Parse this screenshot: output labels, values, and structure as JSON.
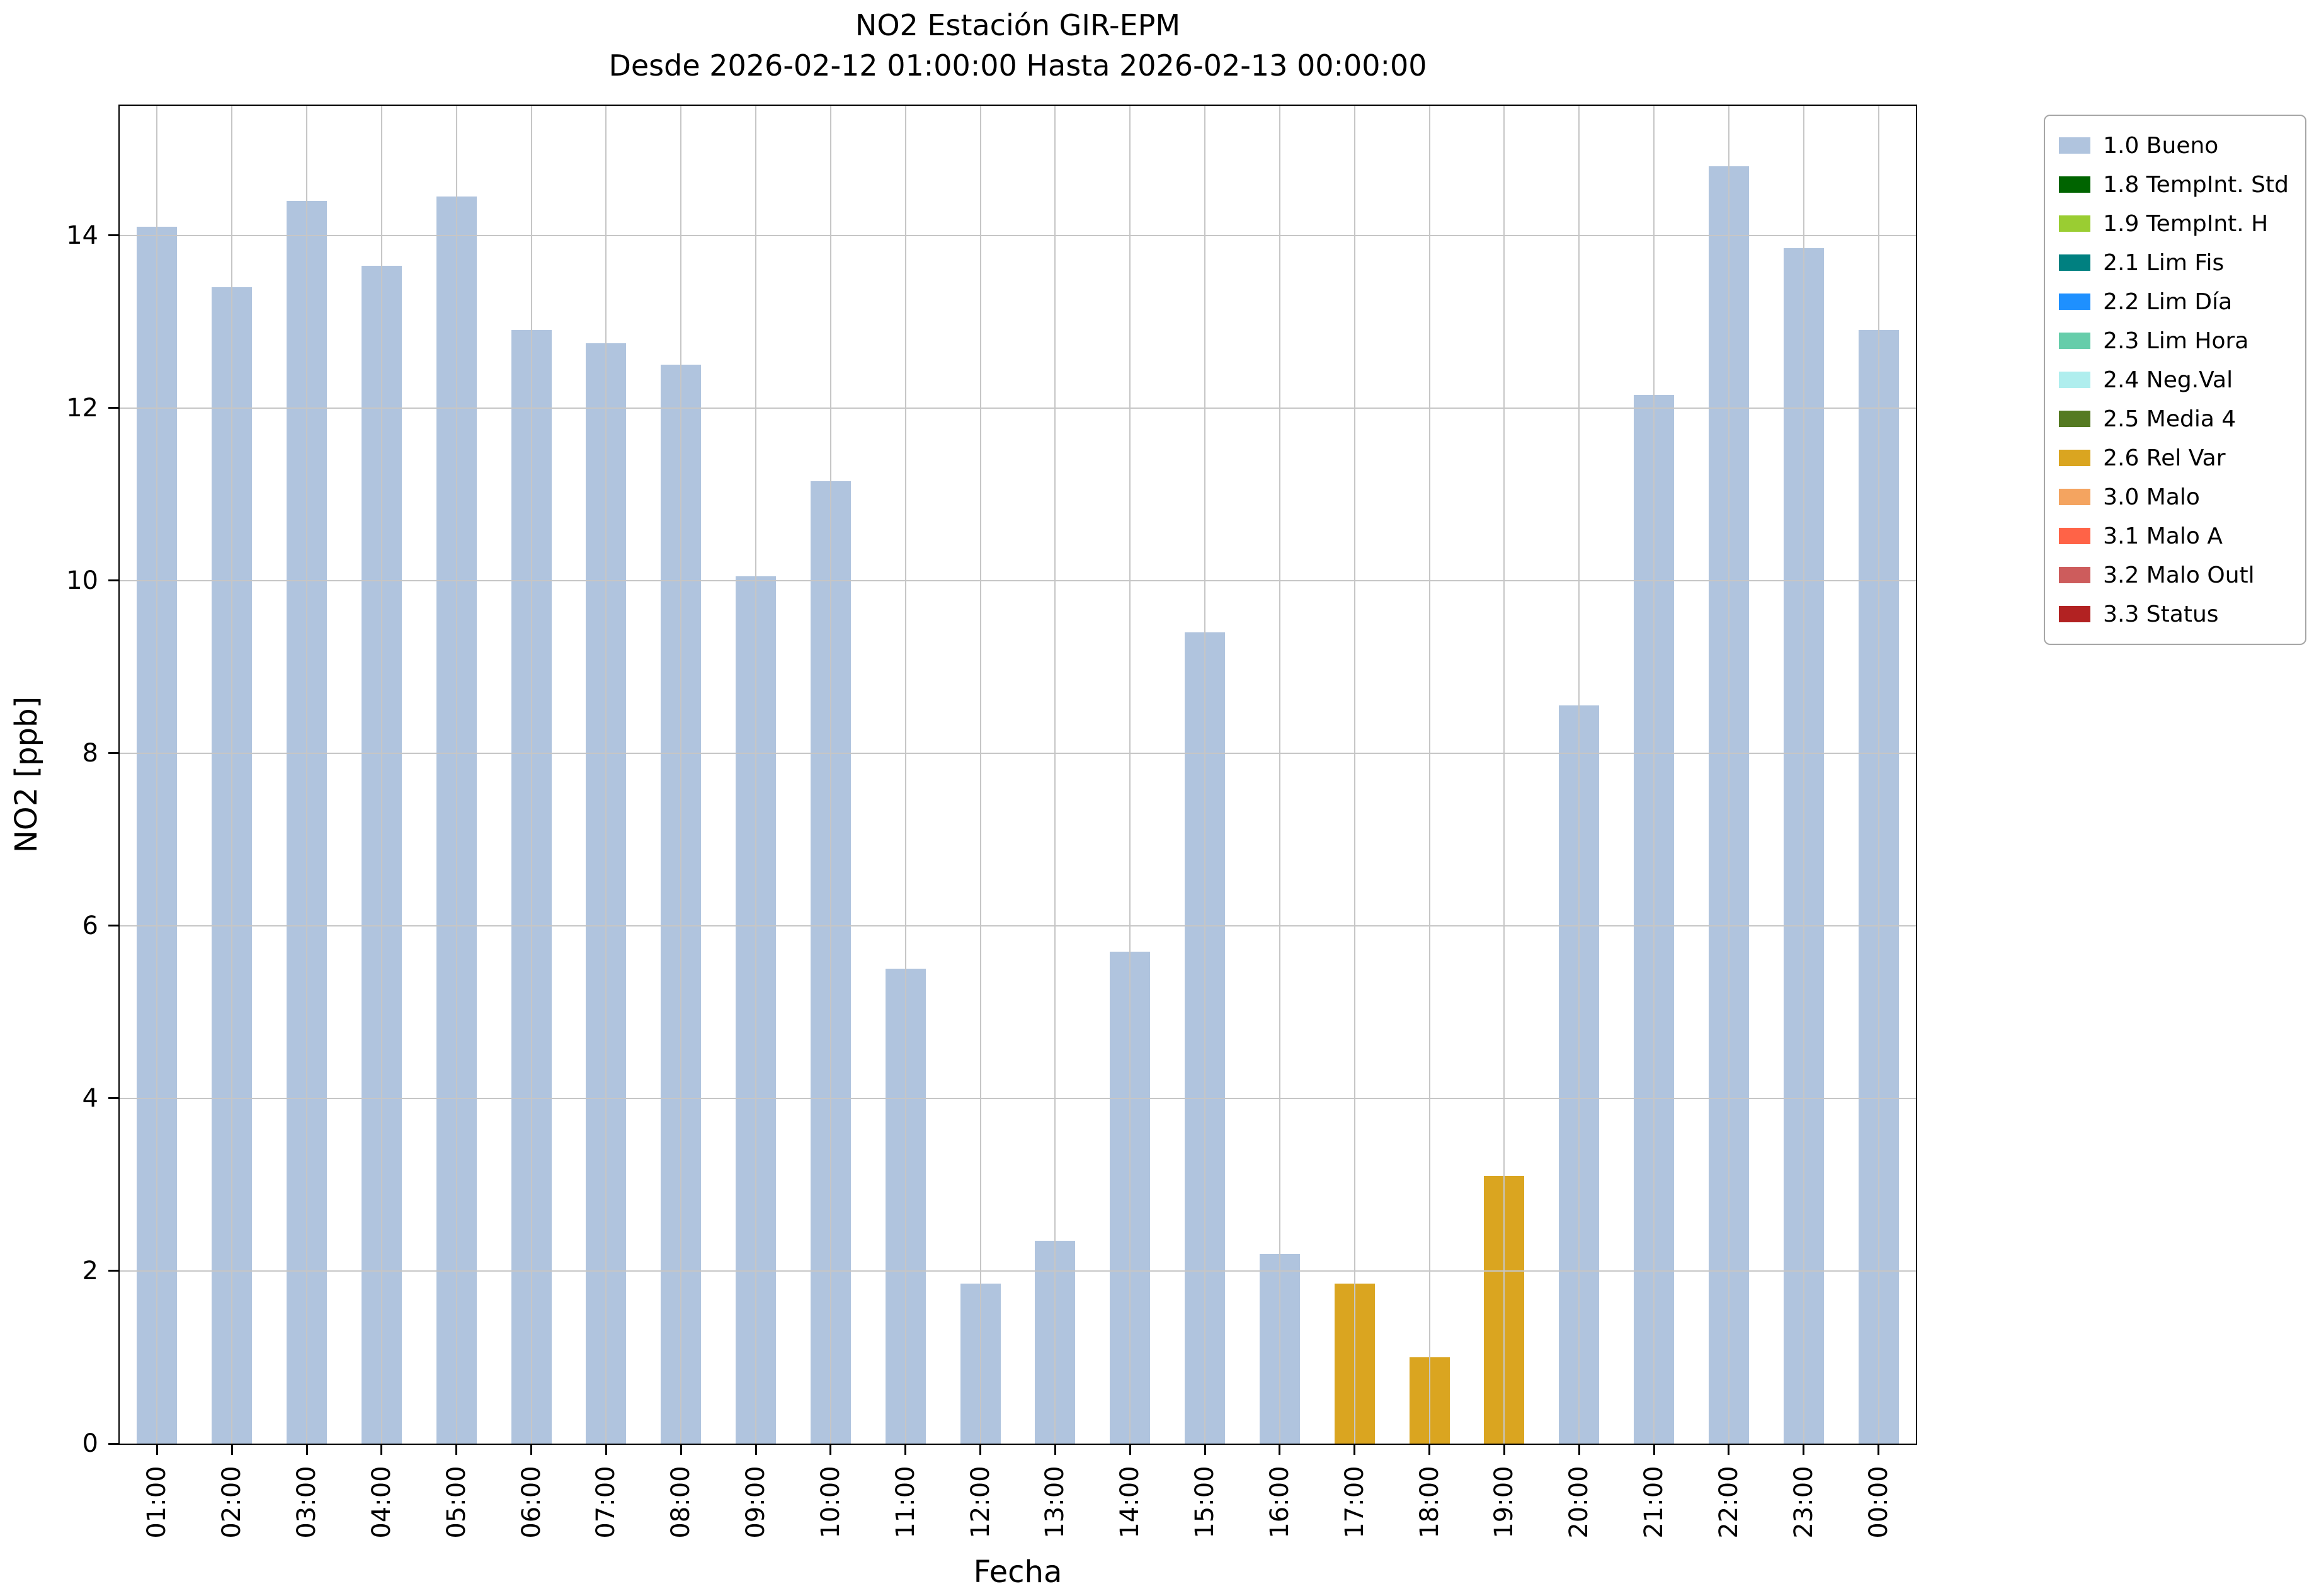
{
  "chart_data": {
    "type": "bar",
    "title": "NO2 Estación GIR-EPM",
    "subtitle": "Desde 2026-02-12 01:00:00 Hasta 2026-02-13 00:00:00",
    "xlabel": "Fecha",
    "ylabel": "NO2 [ppb]",
    "ylim": [
      0,
      15.5
    ],
    "yticks": [
      0,
      2,
      4,
      6,
      8,
      10,
      12,
      14
    ],
    "grid": true,
    "legend_position": "outside upper right",
    "categories": [
      "01:00",
      "02:00",
      "03:00",
      "04:00",
      "05:00",
      "06:00",
      "07:00",
      "08:00",
      "09:00",
      "10:00",
      "11:00",
      "12:00",
      "13:00",
      "14:00",
      "15:00",
      "16:00",
      "17:00",
      "18:00",
      "19:00",
      "20:00",
      "21:00",
      "22:00",
      "23:00",
      "00:00"
    ],
    "values": [
      14.1,
      13.4,
      14.4,
      13.65,
      14.45,
      12.9,
      12.75,
      12.5,
      10.05,
      11.15,
      5.5,
      1.85,
      2.35,
      5.7,
      9.4,
      2.2,
      1.85,
      1.0,
      3.1,
      8.55,
      12.15,
      14.8,
      13.85,
      12.9
    ],
    "statuses": [
      "1.0 Bueno",
      "1.0 Bueno",
      "1.0 Bueno",
      "1.0 Bueno",
      "1.0 Bueno",
      "1.0 Bueno",
      "1.0 Bueno",
      "1.0 Bueno",
      "1.0 Bueno",
      "1.0 Bueno",
      "1.0 Bueno",
      "1.0 Bueno",
      "1.0 Bueno",
      "1.0 Bueno",
      "1.0 Bueno",
      "1.0 Bueno",
      "2.6 Rel Var",
      "2.6 Rel Var",
      "2.6 Rel Var",
      "1.0 Bueno",
      "1.0 Bueno",
      "1.0 Bueno",
      "1.0 Bueno",
      "1.0 Bueno"
    ],
    "status_colors": {
      "1.0 Bueno": "#b0c4de",
      "2.6 Rel Var": "#daa520"
    },
    "legend": {
      "entries": [
        {
          "label": "1.0 Bueno",
          "color": "#b0c4de"
        },
        {
          "label": "1.8 TempInt. Std",
          "color": "#006400"
        },
        {
          "label": "1.9 TempInt. H",
          "color": "#9acd32"
        },
        {
          "label": "2.1 Lim Fis",
          "color": "#008080"
        },
        {
          "label": "2.2 Lim Día",
          "color": "#1e90ff"
        },
        {
          "label": "2.3 Lim Hora",
          "color": "#66cdaa"
        },
        {
          "label": "2.4 Neg.Val",
          "color": "#afeeee"
        },
        {
          "label": "2.5 Media 4",
          "color": "#557a22"
        },
        {
          "label": "2.6 Rel Var",
          "color": "#daa520"
        },
        {
          "label": "3.0 Malo",
          "color": "#f4a460"
        },
        {
          "label": "3.1 Malo A",
          "color": "#ff6347"
        },
        {
          "label": "3.2 Malo Outl",
          "color": "#cd5c5c"
        },
        {
          "label": "3.3 Status",
          "color": "#b22222"
        }
      ]
    }
  },
  "colors": {
    "background": "#ffffff",
    "grid": "#c6c6c6",
    "axis": "#000000",
    "text": "#000000"
  }
}
